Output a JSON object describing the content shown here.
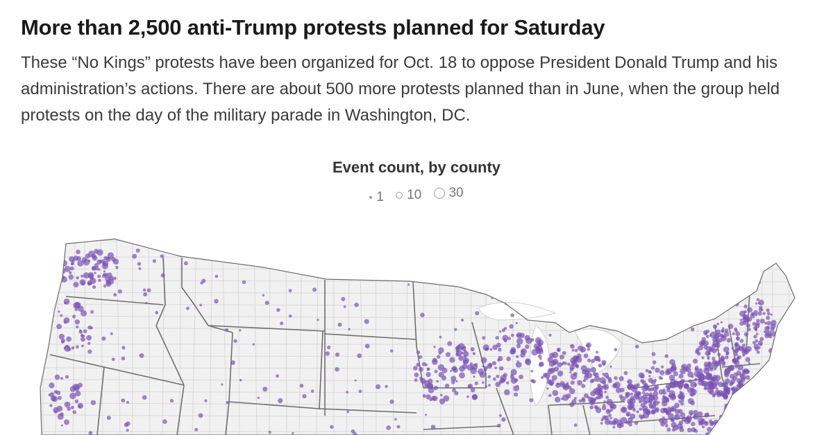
{
  "article": {
    "headline": "More than 2,500 anti-Trump protests planned for Saturday",
    "dek": "These “No Kings” protests have been organized for Oct. 18 to oppose President Donald Trump and his administration’s actions. There are about 500 more protests planned than in June, when the group held protests on the day of the military parade in Washington, DC."
  },
  "legend": {
    "title": "Event count, by county",
    "items": [
      {
        "label": "1",
        "size": "small"
      },
      {
        "label": "10",
        "size": "medium"
      },
      {
        "label": "30",
        "size": "large"
      }
    ]
  },
  "map": {
    "region": "Contiguous United States (cropped)",
    "colors": {
      "land": "#f1f1f1",
      "county_border": "#d9d9d9",
      "state_border": "#6b6b6b",
      "dot_fill": "#7a52b3",
      "dot_stroke": "#5e3a9c"
    }
  }
}
